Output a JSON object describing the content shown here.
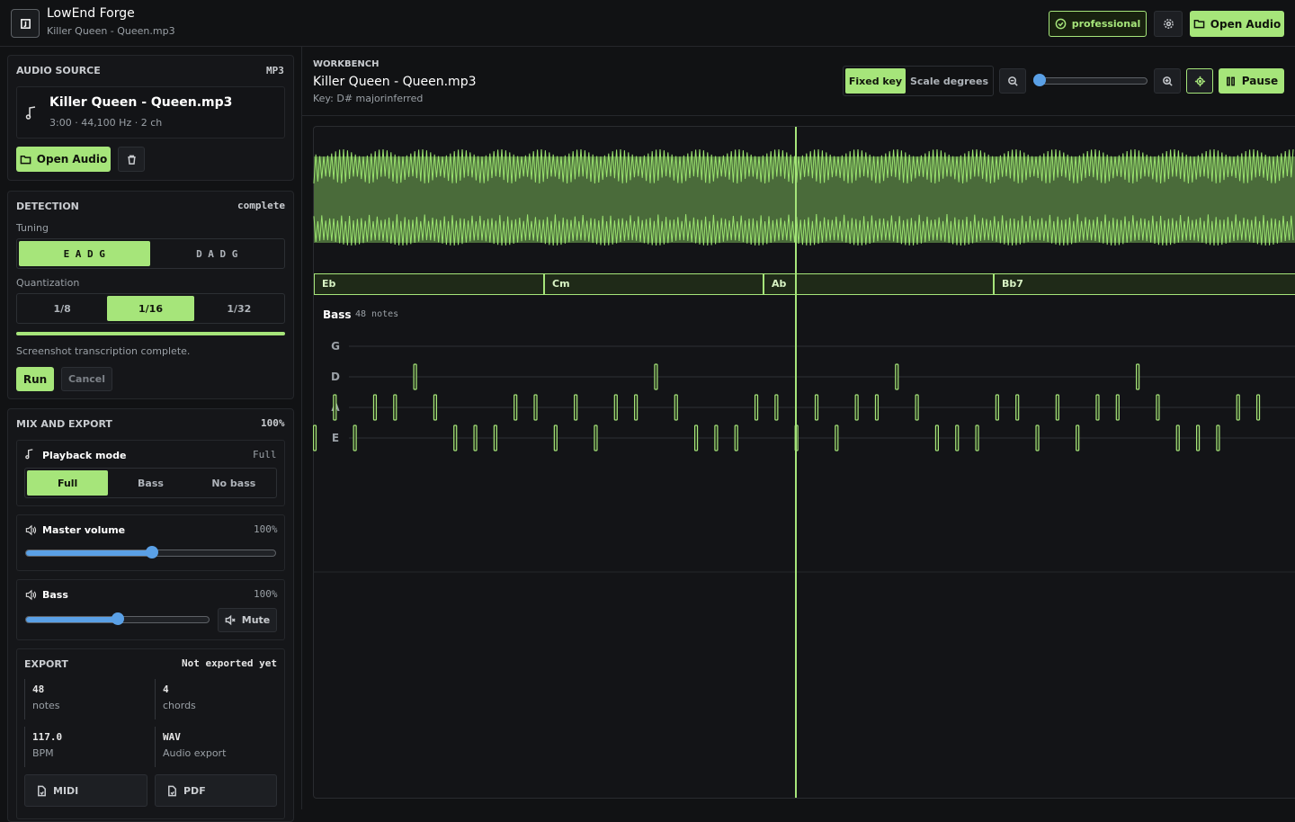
{
  "header": {
    "app_title": "LowEnd Forge",
    "file": "Killer Queen - Queen.mp3",
    "badge": "professional",
    "open_audio": "Open Audio"
  },
  "audio_source": {
    "title": "AUDIO SOURCE",
    "format": "MP3",
    "file_name": "Killer Queen - Queen.mp3",
    "meta": "3:00 · 44,100 Hz · 2 ch",
    "open_audio": "Open Audio"
  },
  "detection": {
    "title": "DETECTION",
    "status": "complete",
    "tuning_label": "Tuning",
    "tunings": [
      "E A D G",
      "D A D G"
    ],
    "quantization_label": "Quantization",
    "quantizations": [
      "1/8",
      "1/16",
      "1/32"
    ],
    "message": "Screenshot transcription complete.",
    "run": "Run",
    "cancel": "Cancel"
  },
  "mix": {
    "title": "MIX AND EXPORT",
    "percent": "100%",
    "playback_mode": "Playback mode",
    "playback_value": "Full",
    "modes": [
      "Full",
      "Bass",
      "No bass"
    ],
    "master_volume": "Master volume",
    "master_value": "100%",
    "bass": "Bass",
    "bass_value": "100%",
    "mute": "Mute"
  },
  "export": {
    "title": "EXPORT",
    "status": "Not exported yet",
    "stats": [
      {
        "value": "48",
        "label": "notes"
      },
      {
        "value": "4",
        "label": "chords"
      },
      {
        "value": "117.0",
        "label": "BPM"
      },
      {
        "value": "WAV",
        "label": "Audio export"
      }
    ],
    "buttons": [
      "MIDI",
      "PDF"
    ]
  },
  "workbench": {
    "eyebrow": "WORKBENCH",
    "title": "Killer Queen - Queen.mp3",
    "key": "Key: D# majorinferred",
    "modes": [
      "Fixed key",
      "Scale degrees"
    ],
    "pause": "Pause"
  },
  "chords": [
    "Eb",
    "Cm",
    "Ab",
    "Bb7"
  ],
  "piano_roll": {
    "track": "Bass",
    "count": "48 notes",
    "strings": [
      "G",
      "D",
      "A",
      "E"
    ],
    "notes": [
      {
        "string": "E",
        "step": 0
      },
      {
        "string": "A",
        "step": 1
      },
      {
        "string": "E",
        "step": 2
      },
      {
        "string": "A",
        "step": 3
      },
      {
        "string": "A",
        "step": 4
      },
      {
        "string": "D",
        "step": 5
      },
      {
        "string": "A",
        "step": 6
      },
      {
        "string": "E",
        "step": 7
      },
      {
        "string": "E",
        "step": 8
      },
      {
        "string": "E",
        "step": 9
      },
      {
        "string": "A",
        "step": 10
      },
      {
        "string": "A",
        "step": 11
      },
      {
        "string": "E",
        "step": 12
      },
      {
        "string": "A",
        "step": 13
      },
      {
        "string": "E",
        "step": 14
      },
      {
        "string": "A",
        "step": 15
      },
      {
        "string": "A",
        "step": 16
      },
      {
        "string": "D",
        "step": 17
      },
      {
        "string": "A",
        "step": 18
      },
      {
        "string": "E",
        "step": 19
      },
      {
        "string": "E",
        "step": 20
      },
      {
        "string": "E",
        "step": 21
      },
      {
        "string": "A",
        "step": 22
      },
      {
        "string": "A",
        "step": 23
      },
      {
        "string": "E",
        "step": 24
      },
      {
        "string": "A",
        "step": 25
      },
      {
        "string": "E",
        "step": 26
      },
      {
        "string": "A",
        "step": 27
      },
      {
        "string": "A",
        "step": 28
      },
      {
        "string": "D",
        "step": 29
      },
      {
        "string": "A",
        "step": 30
      },
      {
        "string": "E",
        "step": 31
      },
      {
        "string": "E",
        "step": 32
      },
      {
        "string": "E",
        "step": 33
      },
      {
        "string": "A",
        "step": 34
      },
      {
        "string": "A",
        "step": 35
      },
      {
        "string": "E",
        "step": 36
      },
      {
        "string": "A",
        "step": 37
      },
      {
        "string": "E",
        "step": 38
      },
      {
        "string": "A",
        "step": 39
      },
      {
        "string": "A",
        "step": 40
      },
      {
        "string": "D",
        "step": 41
      },
      {
        "string": "A",
        "step": 42
      },
      {
        "string": "E",
        "step": 43
      },
      {
        "string": "E",
        "step": 44
      },
      {
        "string": "E",
        "step": 45
      },
      {
        "string": "A",
        "step": 46
      },
      {
        "string": "A",
        "step": 47
      }
    ]
  }
}
